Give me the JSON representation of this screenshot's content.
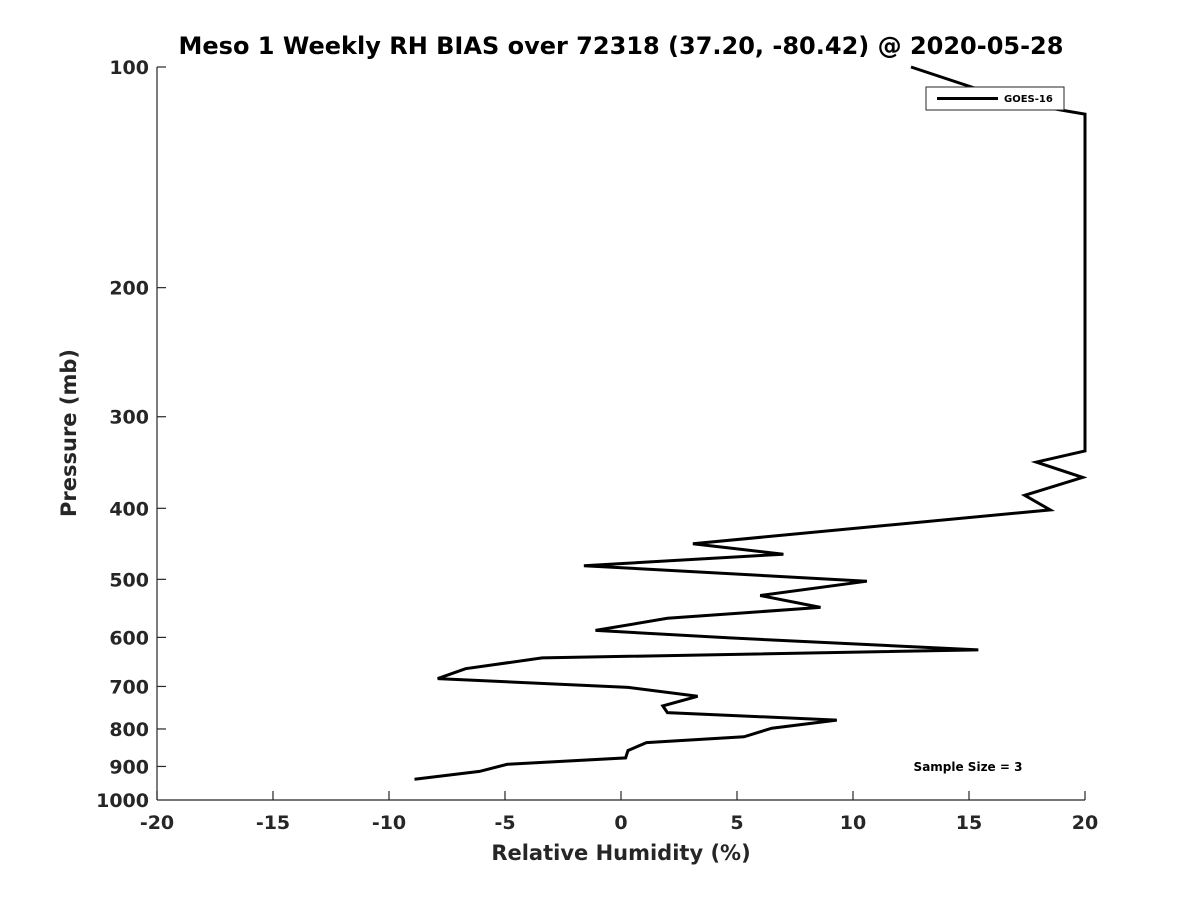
{
  "chart_data": {
    "type": "line",
    "title": "Meso 1 Weekly RH BIAS over 72318 (37.20, -80.42) @ 2020-05-28",
    "xlabel": "Relative Humidity (%)",
    "ylabel": "Pressure (mb)",
    "xlim": [
      -20,
      20
    ],
    "ylim": [
      100,
      1000
    ],
    "y_scale": "log",
    "y_reversed": true,
    "x_ticks": [
      "-20",
      "-15",
      "-10",
      "-5",
      "0",
      "5",
      "10",
      "15",
      "20"
    ],
    "y_ticks": [
      "100",
      "200",
      "300",
      "400",
      "500",
      "600",
      "700",
      "800",
      "900",
      "1000"
    ],
    "grid": false,
    "legend": {
      "position": "top-right",
      "entries": [
        "GOES-16"
      ]
    },
    "annotation": "Sample Size = 3",
    "series": [
      {
        "name": "GOES-16",
        "color": "#000000",
        "points": [
          {
            "x": 12.5,
            "y": 100
          },
          {
            "x": 17.2,
            "y": 112
          },
          {
            "x": 20.0,
            "y": 116
          },
          {
            "x": 20.0,
            "y": 334
          },
          {
            "x": 17.9,
            "y": 346
          },
          {
            "x": 19.9,
            "y": 363
          },
          {
            "x": 17.4,
            "y": 384
          },
          {
            "x": 18.5,
            "y": 402
          },
          {
            "x": 3.1,
            "y": 447
          },
          {
            "x": 7.0,
            "y": 462
          },
          {
            "x": -1.6,
            "y": 479
          },
          {
            "x": 10.6,
            "y": 503
          },
          {
            "x": 6.0,
            "y": 526
          },
          {
            "x": 8.6,
            "y": 546
          },
          {
            "x": 2.0,
            "y": 565
          },
          {
            "x": -1.1,
            "y": 587
          },
          {
            "x": 4.7,
            "y": 601
          },
          {
            "x": 15.4,
            "y": 624
          },
          {
            "x": -3.4,
            "y": 640
          },
          {
            "x": -6.7,
            "y": 662
          },
          {
            "x": -7.9,
            "y": 683
          },
          {
            "x": 0.3,
            "y": 702
          },
          {
            "x": 3.3,
            "y": 722
          },
          {
            "x": 1.8,
            "y": 744
          },
          {
            "x": 2.0,
            "y": 760
          },
          {
            "x": 9.3,
            "y": 778
          },
          {
            "x": 6.5,
            "y": 798
          },
          {
            "x": 5.3,
            "y": 820
          },
          {
            "x": 1.1,
            "y": 835
          },
          {
            "x": 0.3,
            "y": 856
          },
          {
            "x": 0.2,
            "y": 876
          },
          {
            "x": -4.9,
            "y": 894
          },
          {
            "x": -6.1,
            "y": 914
          },
          {
            "x": -8.9,
            "y": 937
          }
        ]
      }
    ]
  }
}
